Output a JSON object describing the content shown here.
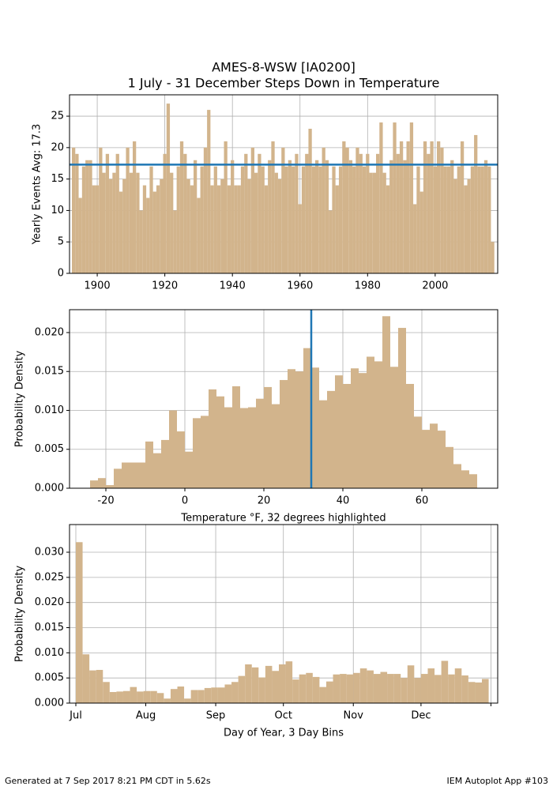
{
  "chart_data": [
    {
      "type": "bar",
      "title": "AMES-8-WSW [IA0200]",
      "subtitle": "1 July - 31 December Steps Down in Temperature",
      "ylabel": "Yearly Events Avg: 17.3",
      "color": "#d2b48c",
      "hline": 17.3,
      "line_color": "#1f77b4",
      "grid": true,
      "x": [
        1893,
        1894,
        1895,
        1896,
        1897,
        1898,
        1899,
        1900,
        1901,
        1902,
        1903,
        1904,
        1905,
        1906,
        1907,
        1908,
        1909,
        1910,
        1911,
        1912,
        1913,
        1914,
        1915,
        1916,
        1917,
        1918,
        1919,
        1920,
        1921,
        1922,
        1923,
        1924,
        1925,
        1926,
        1927,
        1928,
        1929,
        1930,
        1931,
        1932,
        1933,
        1934,
        1935,
        1936,
        1937,
        1938,
        1939,
        1940,
        1941,
        1942,
        1943,
        1944,
        1945,
        1946,
        1947,
        1948,
        1949,
        1950,
        1951,
        1952,
        1953,
        1954,
        1955,
        1956,
        1957,
        1958,
        1959,
        1960,
        1961,
        1962,
        1963,
        1964,
        1965,
        1966,
        1967,
        1968,
        1969,
        1970,
        1971,
        1972,
        1973,
        1974,
        1975,
        1976,
        1977,
        1978,
        1979,
        1980,
        1981,
        1982,
        1983,
        1984,
        1985,
        1986,
        1987,
        1988,
        1989,
        1990,
        1991,
        1992,
        1993,
        1994,
        1995,
        1996,
        1997,
        1998,
        1999,
        2000,
        2001,
        2002,
        2003,
        2004,
        2005,
        2006,
        2007,
        2008,
        2009,
        2010,
        2011,
        2012,
        2013,
        2014,
        2015,
        2016,
        2017
      ],
      "values": [
        20,
        19,
        12,
        17,
        18,
        18,
        14,
        14,
        20,
        16,
        19,
        15,
        16,
        19,
        13,
        15,
        20,
        16,
        21,
        16,
        10,
        14,
        12,
        17,
        13,
        14,
        15,
        19,
        27,
        16,
        10,
        17,
        21,
        19,
        15,
        14,
        18,
        12,
        17,
        20,
        26,
        14,
        17,
        14,
        15,
        21,
        14,
        18,
        14,
        14,
        17,
        19,
        15,
        20,
        16,
        19,
        17,
        14,
        18,
        21,
        16,
        15,
        20,
        17,
        18,
        17,
        19,
        11,
        17,
        19,
        23,
        17,
        18,
        17,
        20,
        18,
        10,
        17,
        14,
        17,
        21,
        20,
        18,
        17,
        20,
        19,
        17,
        19,
        16,
        16,
        19,
        24,
        16,
        14,
        18,
        24,
        19,
        21,
        18,
        21,
        24,
        11,
        17,
        13,
        21,
        19,
        21,
        17,
        21,
        20,
        17,
        17,
        18,
        15,
        17,
        21,
        14,
        15,
        17,
        22,
        17,
        17,
        18,
        17,
        5
      ],
      "xlim": [
        1891.8,
        2018.5
      ],
      "xticks": [
        1900,
        1920,
        1940,
        1960,
        1980,
        2000
      ],
      "ylim": [
        0,
        28.4
      ],
      "yticks": [
        0,
        5,
        10,
        15,
        20,
        25
      ]
    },
    {
      "type": "histogram",
      "xlabel": "Temperature °F, 32 degrees highlighted",
      "ylabel": "Probability Density",
      "color": "#d2b48c",
      "vline": 32,
      "line_color": "#1f77b4",
      "grid": true,
      "bins": [
        -24,
        -22,
        -20,
        -18,
        -16,
        -14,
        -12,
        -10,
        -8,
        -6,
        -4,
        -2,
        0,
        2,
        4,
        6,
        8,
        10,
        12,
        14,
        16,
        18,
        20,
        22,
        24,
        26,
        28,
        30,
        32,
        34,
        36,
        38,
        40,
        42,
        44,
        46,
        48,
        50,
        52,
        54,
        56,
        58,
        60,
        62,
        64,
        66,
        68,
        70,
        72,
        74
      ],
      "values": [
        0.001,
        0.0013,
        0.0004,
        0.0025,
        0.0033,
        0.0033,
        0.0033,
        0.006,
        0.0045,
        0.0062,
        0.01,
        0.0073,
        0.0047,
        0.009,
        0.0093,
        0.0127,
        0.0118,
        0.0104,
        0.0131,
        0.0103,
        0.0104,
        0.0115,
        0.013,
        0.0108,
        0.0139,
        0.0153,
        0.015,
        0.018,
        0.0155,
        0.0113,
        0.0125,
        0.0145,
        0.0134,
        0.0154,
        0.0148,
        0.0169,
        0.0163,
        0.0221,
        0.0156,
        0.0206,
        0.0134,
        0.0092,
        0.0075,
        0.0083,
        0.0074,
        0.0053,
        0.0031,
        0.0023,
        0.0018
      ],
      "xlim": [
        -29.2,
        79.2
      ],
      "xticks": [
        -20,
        0,
        20,
        40,
        60
      ],
      "ylim": [
        0,
        0.02294
      ],
      "yticks": [
        {
          "value": 0,
          "label": "0.000"
        },
        {
          "value": 0.005,
          "label": "0.005"
        },
        {
          "value": 0.01,
          "label": "0.010"
        },
        {
          "value": 0.015,
          "label": "0.015"
        },
        {
          "value": 0.02,
          "label": "0.020"
        }
      ]
    },
    {
      "type": "histogram",
      "xlabel": "Day of Year, 3 Day Bins",
      "ylabel": "Probability Density",
      "color": "#d2b48c",
      "grid": true,
      "bins": [
        182,
        185,
        188,
        191,
        194,
        197,
        200,
        203,
        206,
        209,
        212,
        215,
        218,
        221,
        224,
        227,
        230,
        233,
        236,
        239,
        242,
        245,
        248,
        251,
        254,
        257,
        260,
        263,
        266,
        269,
        272,
        275,
        278,
        281,
        284,
        287,
        290,
        293,
        296,
        299,
        302,
        305,
        308,
        311,
        314,
        317,
        320,
        323,
        326,
        329,
        332,
        335,
        338,
        341,
        344,
        347,
        350,
        353,
        356,
        359,
        362,
        365
      ],
      "values": [
        0.032,
        0.0097,
        0.0065,
        0.0066,
        0.0042,
        0.0022,
        0.0023,
        0.0024,
        0.0032,
        0.0023,
        0.0024,
        0.0024,
        0.002,
        0.0009,
        0.0028,
        0.0033,
        0.0009,
        0.0026,
        0.0026,
        0.003,
        0.0031,
        0.0031,
        0.0037,
        0.0042,
        0.0054,
        0.0077,
        0.0071,
        0.0051,
        0.0074,
        0.0064,
        0.0077,
        0.0083,
        0.0047,
        0.0057,
        0.006,
        0.0052,
        0.0032,
        0.0043,
        0.0057,
        0.0058,
        0.0057,
        0.006,
        0.0069,
        0.0065,
        0.0058,
        0.0062,
        0.0058,
        0.0058,
        0.005,
        0.0075,
        0.005,
        0.0058,
        0.0069,
        0.0056,
        0.0084,
        0.0057,
        0.0069,
        0.0055,
        0.0042,
        0.0041,
        0.0048
      ],
      "xlim": [
        179.2,
        369.0
      ],
      "xticks": [
        {
          "value": 182,
          "label": "Jul"
        },
        {
          "value": 213,
          "label": "Aug"
        },
        {
          "value": 244,
          "label": "Sep"
        },
        {
          "value": 274,
          "label": "Oct"
        },
        {
          "value": 305,
          "label": "Nov"
        },
        {
          "value": 335,
          "label": "Dec"
        },
        {
          "value": 366,
          "label": null
        }
      ],
      "ylim": [
        0,
        0.0355
      ],
      "yticks": [
        {
          "value": 0,
          "label": "0.000"
        },
        {
          "value": 0.005,
          "label": "0.005"
        },
        {
          "value": 0.01,
          "label": "0.010"
        },
        {
          "value": 0.015,
          "label": "0.015"
        },
        {
          "value": 0.02,
          "label": "0.020"
        },
        {
          "value": 0.025,
          "label": "0.025"
        },
        {
          "value": 0.03,
          "label": "0.030"
        }
      ]
    }
  ],
  "footer": {
    "left": "Generated at 7 Sep 2017 8:21 PM CDT in 5.62s",
    "right": "IEM Autoplot App #103"
  }
}
